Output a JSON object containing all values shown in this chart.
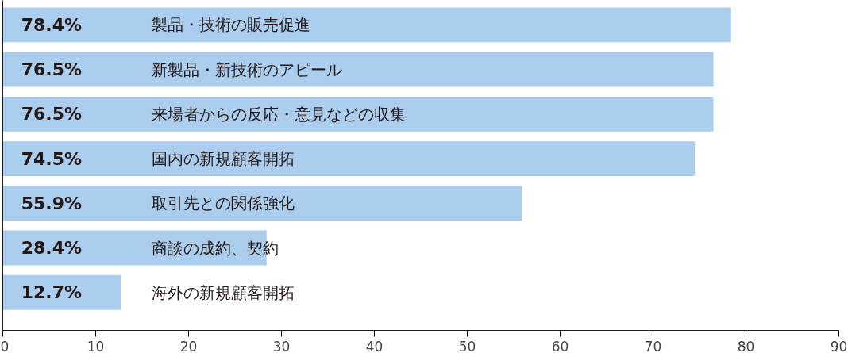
{
  "chart_data": {
    "type": "bar",
    "orientation": "horizontal",
    "categories": [
      "製品・技術の販売促進",
      "新製品・新技術のアピール",
      "来場者からの反応・意見などの収集",
      "国内の新規顧客開拓",
      "取引先との関係強化",
      "商談の成約、契約",
      "海外の新規顧客開拓"
    ],
    "values": [
      78.4,
      76.5,
      76.5,
      74.5,
      55.9,
      28.4,
      12.7
    ],
    "value_labels": [
      "78.4%",
      "76.5%",
      "76.5%",
      "74.5%",
      "55.9%",
      "28.4%",
      "12.7%"
    ],
    "color": "#abcdee",
    "xlim": [
      0,
      90
    ],
    "xticks": [
      0,
      10,
      20,
      30,
      40,
      50,
      60,
      70,
      80,
      90
    ],
    "grid": false,
    "tick_labels": "x"
  }
}
